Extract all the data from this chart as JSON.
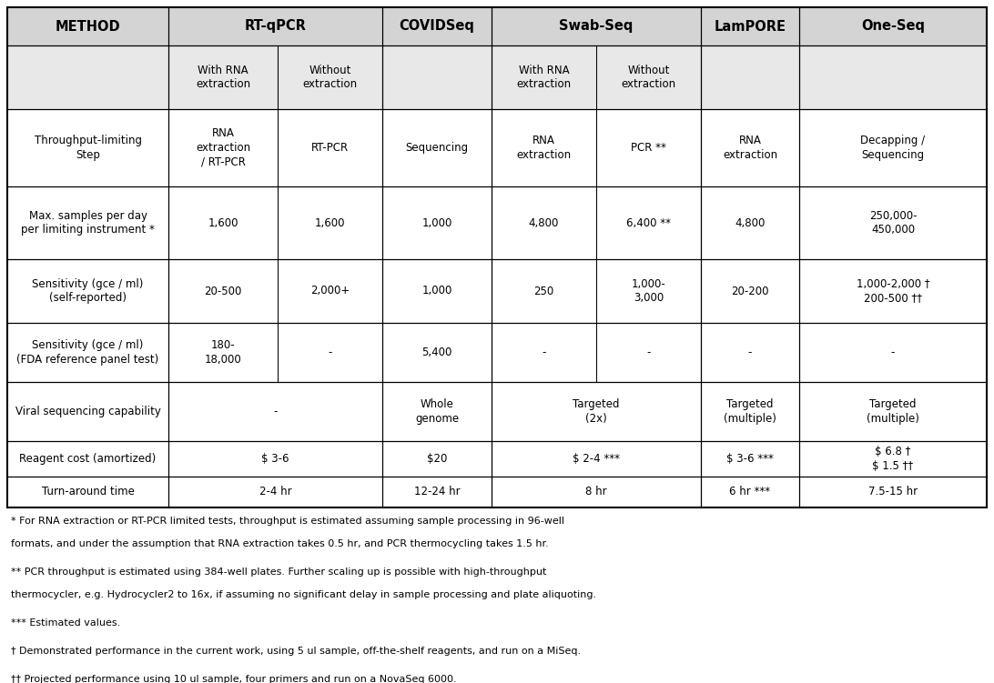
{
  "background_color": "#ffffff",
  "header_bg": "#d4d4d4",
  "subheader_bg": "#e8e8e8",
  "cell_bg": "#ffffff",
  "border_color": "#000000",
  "text_color": "#000000",
  "fig_width": 10.92,
  "fig_height": 7.51,
  "dpi": 100,
  "col_headers": [
    "METHOD",
    "RT-qPCR",
    "COVIDSeq",
    "Swab-Seq",
    "LamPORE",
    "One-Seq"
  ],
  "footnotes": [
    {
      "indent": false,
      "text": "* For RNA extraction or RT-PCR limited tests, throughput is estimated assuming sample processing in 96-well"
    },
    {
      "indent": false,
      "text": "formats, and under the assumption that RNA extraction takes 0.5 hr, and PCR thermocycling takes 1.5 hr."
    },
    {
      "indent": false,
      "text": "** PCR throughput is estimated using 384-well plates. Further scaling up is possible with high-throughput"
    },
    {
      "indent": false,
      "text": "thermocycler, e.g. Hydrocycler2 to 16x, if assuming no significant delay in sample processing and plate aliquoting."
    },
    {
      "indent": false,
      "text": "*** Estimated values."
    },
    {
      "indent": false,
      "text": "† Demonstrated performance in the current work, using 5 ul sample, off-the-shelf reagents, and run on a MiSeq."
    },
    {
      "indent": false,
      "text": "†† Projected performance using 10 ul sample, four primers and run on a NovaSeq 6000."
    }
  ]
}
